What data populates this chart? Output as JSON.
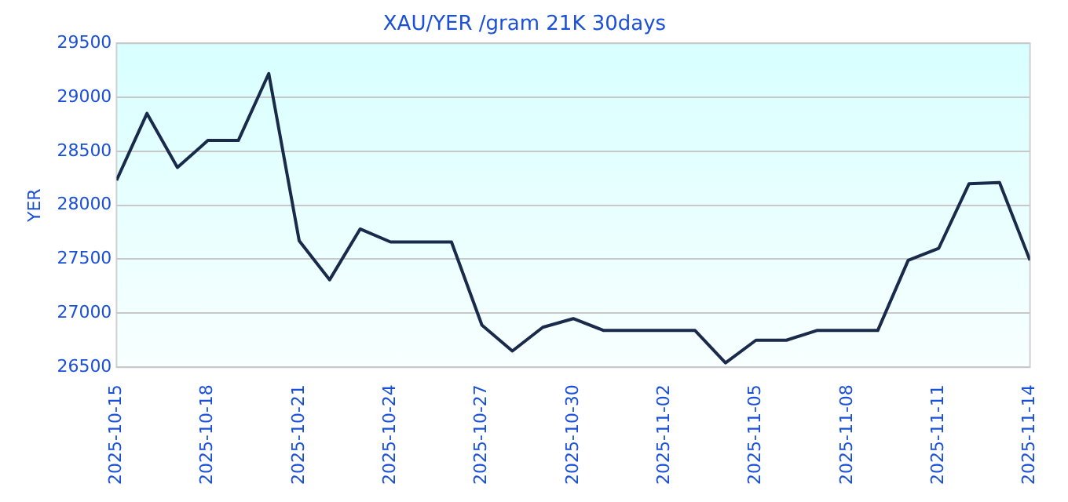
{
  "chart_data": {
    "type": "line",
    "title": "XAU/YER /gram 21K 30days",
    "ylabel": "YER",
    "x": [
      "2025-10-15",
      "2025-10-16",
      "2025-10-17",
      "2025-10-18",
      "2025-10-19",
      "2025-10-20",
      "2025-10-21",
      "2025-10-22",
      "2025-10-23",
      "2025-10-24",
      "2025-10-25",
      "2025-10-26",
      "2025-10-27",
      "2025-10-28",
      "2025-10-29",
      "2025-10-30",
      "2025-10-31",
      "2025-11-01",
      "2025-11-02",
      "2025-11-03",
      "2025-11-04",
      "2025-11-05",
      "2025-11-06",
      "2025-11-07",
      "2025-11-08",
      "2025-11-09",
      "2025-11-10",
      "2025-11-11",
      "2025-11-12",
      "2025-11-13",
      "2025-11-14"
    ],
    "series": [
      {
        "color": "#1a2a4a",
        "values": [
          28230,
          28850,
          28350,
          28600,
          28600,
          29220,
          27670,
          27310,
          27780,
          27660,
          27660,
          27660,
          26890,
          26650,
          26870,
          26950,
          26840,
          26840,
          26840,
          26840,
          26540,
          26750,
          26750,
          26840,
          26840,
          26840,
          27490,
          27600,
          28200,
          28210,
          27490
        ]
      }
    ],
    "xlim": [
      "2025-10-15",
      "2025-11-14"
    ],
    "xticks": [
      "2025-10-15",
      "2025-10-18",
      "2025-10-21",
      "2025-10-24",
      "2025-10-27",
      "2025-10-30",
      "2025-11-02",
      "2025-11-05",
      "2025-11-08",
      "2025-11-11",
      "2025-11-14"
    ],
    "ylim": [
      26500,
      29500
    ],
    "yticks": [
      26500,
      27000,
      27500,
      28000,
      28500,
      29000,
      29500
    ],
    "grid": "y",
    "legend": false,
    "marker": "none",
    "line_style": "solid"
  }
}
